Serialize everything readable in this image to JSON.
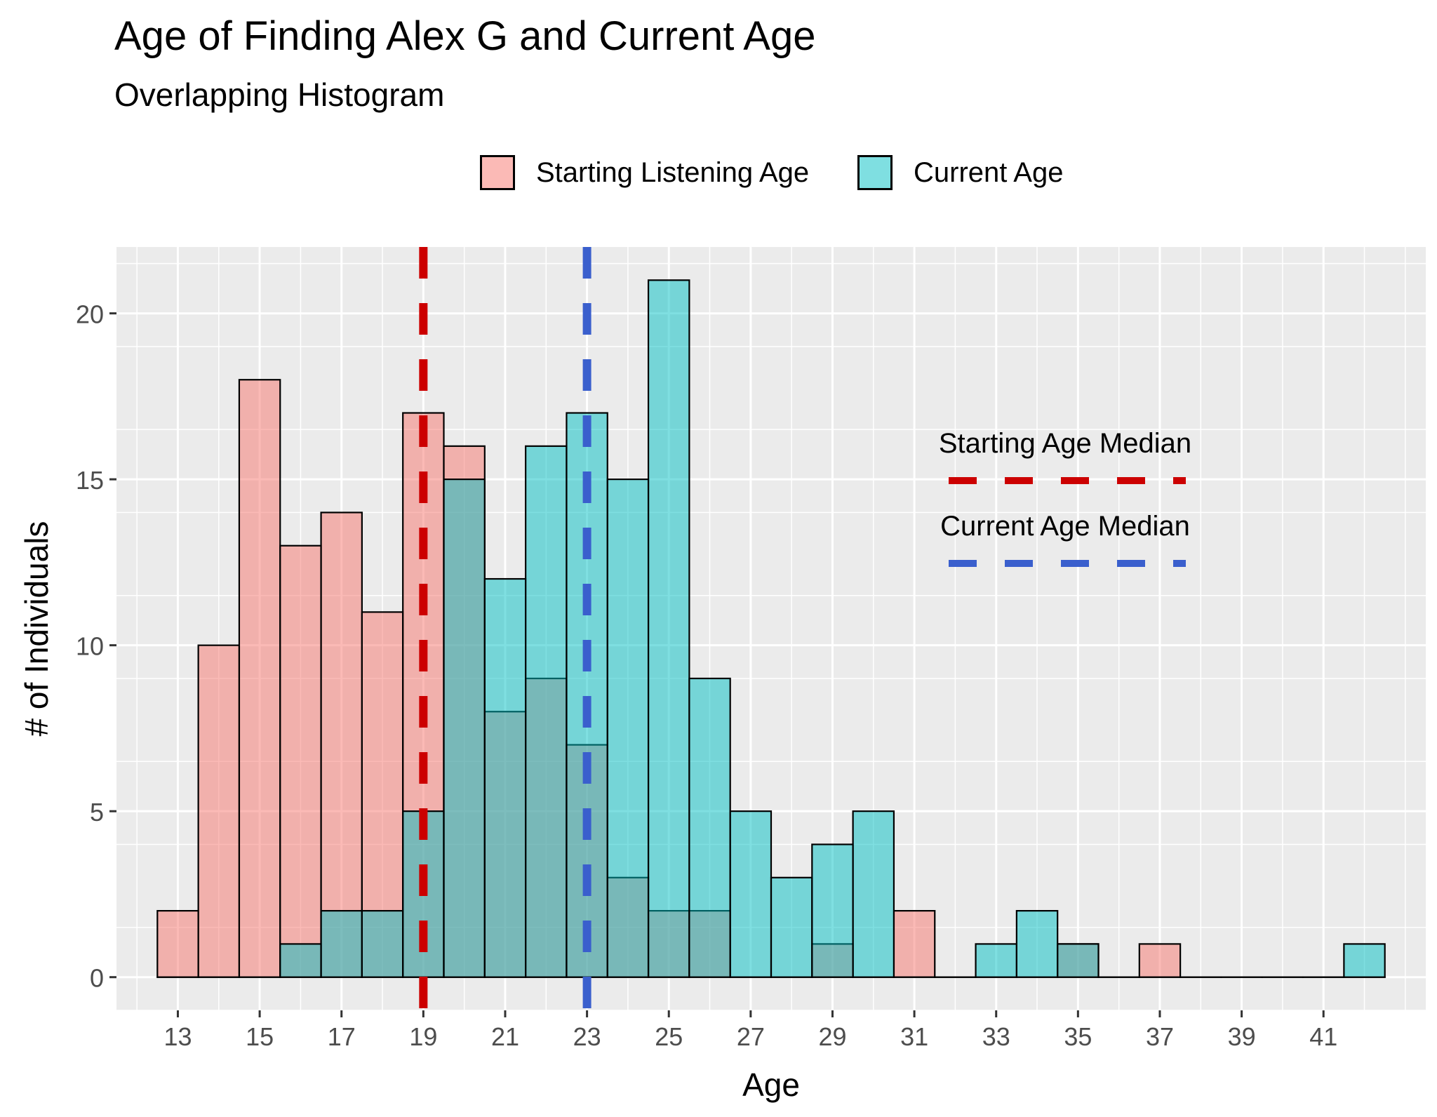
{
  "chart_data": {
    "type": "bar",
    "title": "Age of Finding Alex G and Current Age",
    "subtitle": "Overlapping Histogram",
    "xlabel": "Age",
    "ylabel": "# of Individuals",
    "x": [
      13,
      14,
      15,
      16,
      17,
      18,
      19,
      20,
      21,
      22,
      23,
      24,
      25,
      26,
      27,
      28,
      29,
      30,
      31,
      32,
      33,
      34,
      35,
      36,
      37,
      38,
      39,
      40,
      41,
      42
    ],
    "x_ticks": [
      "13",
      "15",
      "17",
      "19",
      "21",
      "23",
      "25",
      "27",
      "29",
      "31",
      "33",
      "35",
      "37",
      "39",
      "41"
    ],
    "y_ticks": [
      "0",
      "5",
      "10",
      "15",
      "20"
    ],
    "xlim": [
      11.5,
      43.5
    ],
    "ylim": [
      -1,
      22
    ],
    "grid": true,
    "legend_position": "top",
    "series": [
      {
        "name": "Starting Listening Age",
        "color": "#F8766D",
        "values": [
          2,
          10,
          18,
          13,
          14,
          11,
          17,
          16,
          8,
          9,
          7,
          3,
          2,
          2,
          0,
          0,
          1,
          0,
          2,
          0,
          0,
          0,
          1,
          0,
          1,
          0,
          0,
          0,
          0,
          0
        ]
      },
      {
        "name": "Current Age",
        "color": "#00BFC4",
        "values": [
          0,
          0,
          0,
          1,
          2,
          2,
          5,
          15,
          12,
          16,
          17,
          15,
          21,
          9,
          5,
          3,
          4,
          5,
          0,
          0,
          1,
          2,
          1,
          0,
          0,
          0,
          0,
          0,
          0,
          1
        ]
      }
    ],
    "annotations": [
      {
        "label": "Starting Age Median",
        "x": 19,
        "color": "#CC0000"
      },
      {
        "label": "Current Age Median",
        "x": 23,
        "color": "#3A5FCD"
      }
    ]
  }
}
